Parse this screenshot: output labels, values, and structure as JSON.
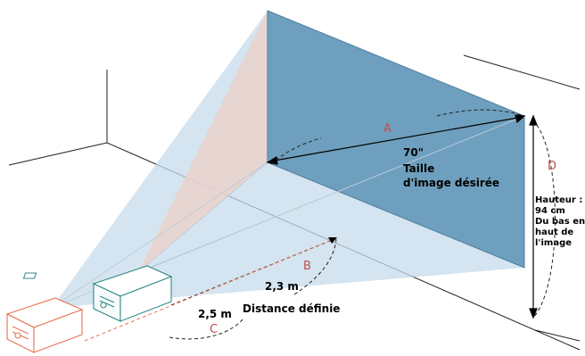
{
  "labels": {
    "a": "A",
    "b": "B",
    "c": "C",
    "d": "D",
    "size": "70\"",
    "size_caption_1": "Taille",
    "size_caption_2": "d'image désirée",
    "dist_near": "2,3 m",
    "dist_far": "2,5 m",
    "dist_caption": "Distance définie",
    "height_1": "Hauteur :",
    "height_2": "94 cm",
    "height_3": "Du bas en",
    "height_4": "haut de",
    "height_5": "l'image"
  },
  "colors": {
    "screen": "#6e9fbe",
    "beam_blue": "#c5dbeb",
    "beam_pink": "#ead2cc",
    "projector_near": "#2e8b88",
    "projector_far": "#e8734f",
    "label_red": "#c0504d"
  }
}
